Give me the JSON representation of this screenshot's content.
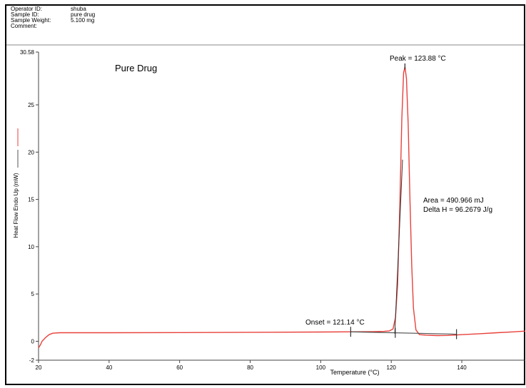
{
  "header": {
    "rows": [
      {
        "label": "Operator ID:",
        "value": "shuba"
      },
      {
        "label": "Sample ID:",
        "value": "pure drug"
      },
      {
        "label": "Sample Weight:",
        "value": "5.100 mg"
      },
      {
        "label": "Comment:",
        "value": ""
      }
    ]
  },
  "chart_data": {
    "type": "line",
    "title": "Pure Drug",
    "xlabel": "Temperature (°C)",
    "ylabel": "Heat Flow Endo Up (mW)",
    "xlim": [
      20,
      158
    ],
    "ylim": [
      -2,
      30.58
    ],
    "x_ticks": [
      20,
      40,
      60,
      80,
      100,
      120,
      140
    ],
    "y_ticks": [
      {
        "value": 30.58,
        "label": "30.58"
      },
      {
        "value": 25,
        "label": "25"
      },
      {
        "value": 20,
        "label": "20"
      },
      {
        "value": 15,
        "label": "15"
      },
      {
        "value": 10,
        "label": "10"
      },
      {
        "value": 5,
        "label": "5"
      },
      {
        "value": 0,
        "label": "0"
      },
      {
        "value": -2,
        "label": "-2"
      }
    ],
    "grid": false,
    "series": [
      {
        "color": "#e8413b",
        "x": [
          20,
          20.5,
          21,
          22,
          23,
          24,
          26,
          30,
          40,
          60,
          80,
          100,
          110,
          115,
          118,
          119.5,
          120.5,
          121.2,
          121.8,
          122.4,
          123,
          123.5,
          123.88,
          124.3,
          124.8,
          125.3,
          125.8,
          126.3,
          127,
          128,
          130,
          133,
          136,
          140,
          145,
          150,
          155,
          158
        ],
        "y": [
          -0.7,
          -0.4,
          0.0,
          0.4,
          0.7,
          0.85,
          0.9,
          0.9,
          0.9,
          0.92,
          0.95,
          0.98,
          1.0,
          1.02,
          1.05,
          1.1,
          1.3,
          2.5,
          6.0,
          14.0,
          23.5,
          28.4,
          29.0,
          27.8,
          23.0,
          15.0,
          8.0,
          3.5,
          1.2,
          0.7,
          0.65,
          0.6,
          0.62,
          0.7,
          0.8,
          0.9,
          1.0,
          1.08
        ]
      }
    ],
    "baseline": {
      "color": "#555555",
      "x": [
        108.5,
        138.5
      ],
      "y": [
        1.0,
        0.75
      ],
      "end_ticks": [
        108.5,
        121.14,
        138.5
      ]
    },
    "tangent": {
      "color": "#333333",
      "x": [
        121.0,
        123.2
      ],
      "y": [
        0.8,
        19.2
      ]
    },
    "peak_marker": {
      "x": 123.88,
      "y": 29.0
    },
    "annotations": {
      "peak": "Peak = 123.88 °C",
      "onset": "Onset = 121.14 °C",
      "area": "Area = 490.966 mJ",
      "delta_h": "Delta H = 96.2679 J/g"
    },
    "legend": {
      "entries": [
        {
          "color": "#e8413b"
        },
        {
          "color": "#555555"
        }
      ],
      "placement": "left"
    }
  }
}
